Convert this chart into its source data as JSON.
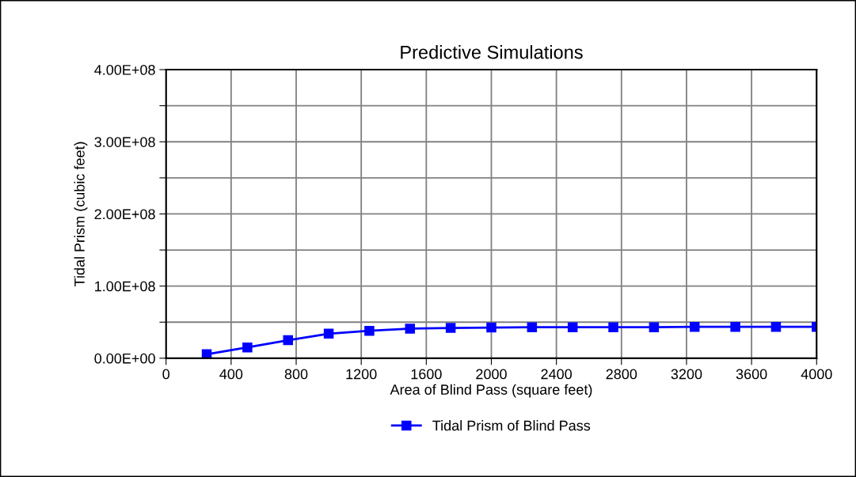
{
  "chart_data": {
    "type": "line",
    "title": "Predictive Simulations",
    "xlabel": "Area of Blind Pass (square feet)",
    "ylabel": "Tidal Prism (cubic feet)",
    "x": [
      250,
      500,
      750,
      1000,
      1250,
      1500,
      1750,
      2000,
      2250,
      2500,
      2750,
      3000,
      3250,
      3500,
      3750,
      4000
    ],
    "series": [
      {
        "name": "Tidal Prism of Blind Pass",
        "color": "#0000ff",
        "values": [
          5500000,
          15000000,
          25000000,
          34000000,
          38000000,
          41000000,
          42000000,
          42500000,
          43000000,
          43000000,
          43000000,
          43000000,
          43500000,
          43500000,
          43500000,
          43500000
        ]
      }
    ],
    "xlim": [
      0,
      4000
    ],
    "xticks": [
      0,
      400,
      800,
      1200,
      1600,
      2000,
      2400,
      2800,
      3200,
      3600,
      4000
    ],
    "ylim": [
      0,
      400000000
    ],
    "yticks": [
      {
        "value": 0,
        "label": "0.00E+00"
      },
      {
        "value": 50000000,
        "label": null
      },
      {
        "value": 100000000,
        "label": "1.00E+08"
      },
      {
        "value": 150000000,
        "label": null
      },
      {
        "value": 200000000,
        "label": "2.00E+08"
      },
      {
        "value": 250000000,
        "label": null
      },
      {
        "value": 300000000,
        "label": "3.00E+08"
      },
      {
        "value": 350000000,
        "label": null
      },
      {
        "value": 400000000,
        "label": "4.00E+08"
      }
    ],
    "grid": true,
    "legend": "bottom",
    "marker": "square",
    "line_style": "solid"
  }
}
